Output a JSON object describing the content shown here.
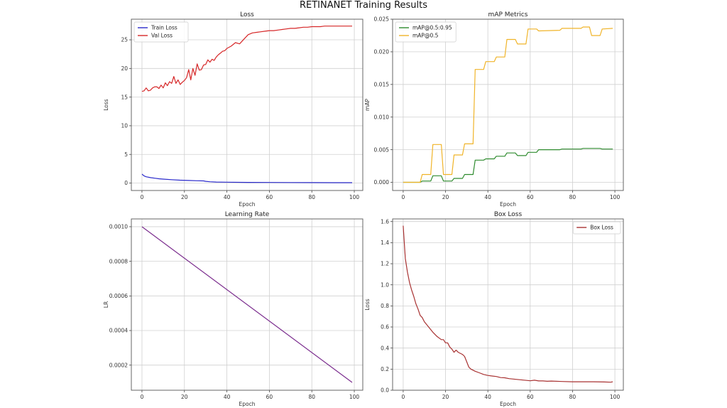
{
  "suptitle": "RETINANET Training Results",
  "chart_data": [
    {
      "type": "line",
      "title": "Loss",
      "xlabel": "Epoch",
      "ylabel": "Loss",
      "xlim": [
        -5,
        104
      ],
      "ylim": [
        -1.3,
        28.6
      ],
      "xticks": [
        0,
        20,
        40,
        60,
        80,
        100
      ],
      "yticks": [
        0,
        5,
        10,
        15,
        20,
        25
      ],
      "ytick_labels": [
        "0",
        "5",
        "10",
        "15",
        "20",
        "25"
      ],
      "grid": true,
      "legend": "top-left",
      "series": [
        {
          "name": "Train Loss",
          "color": "#2a2acb",
          "x": [
            0,
            1,
            2,
            4,
            6,
            8,
            10,
            14,
            18,
            22,
            26,
            29,
            30,
            32,
            35,
            40,
            50,
            60,
            70,
            80,
            90,
            99
          ],
          "y": [
            1.55,
            1.25,
            1.1,
            0.95,
            0.85,
            0.75,
            0.68,
            0.58,
            0.5,
            0.45,
            0.4,
            0.38,
            0.3,
            0.22,
            0.18,
            0.15,
            0.12,
            0.1,
            0.09,
            0.08,
            0.07,
            0.06
          ]
        },
        {
          "name": "Val Loss",
          "color": "#d62728",
          "x": [
            0,
            1,
            2,
            3,
            4,
            5,
            6,
            7,
            8,
            9,
            10,
            11,
            12,
            13,
            14,
            15,
            16,
            17,
            18,
            19,
            20,
            21,
            22,
            23,
            24,
            25,
            26,
            27,
            28,
            29,
            30,
            31,
            32,
            33,
            34,
            35,
            36,
            37,
            38,
            39,
            40,
            42,
            44,
            46,
            48,
            50,
            52,
            54,
            56,
            58,
            60,
            62,
            64,
            66,
            68,
            70,
            72,
            74,
            76,
            78,
            80,
            82,
            84,
            86,
            88,
            90,
            92,
            94,
            96,
            98,
            99
          ],
          "y": [
            16.0,
            16.1,
            16.6,
            16.1,
            16.2,
            16.6,
            16.8,
            16.8,
            16.5,
            17.1,
            16.6,
            17.5,
            17.0,
            17.7,
            17.4,
            18.6,
            17.4,
            18.0,
            17.2,
            17.6,
            17.9,
            18.4,
            19.8,
            18.0,
            20.0,
            18.8,
            20.8,
            19.7,
            19.8,
            20.6,
            20.7,
            21.5,
            21.1,
            21.6,
            21.4,
            22.0,
            22.4,
            22.7,
            23.0,
            23.1,
            23.5,
            23.9,
            24.5,
            24.3,
            25.1,
            25.9,
            26.2,
            26.3,
            26.4,
            26.5,
            26.6,
            26.6,
            26.7,
            26.8,
            26.9,
            27.0,
            27.0,
            27.1,
            27.2,
            27.2,
            27.3,
            27.3,
            27.3,
            27.4,
            27.4,
            27.4,
            27.4,
            27.4,
            27.4,
            27.4,
            27.4
          ]
        }
      ]
    },
    {
      "type": "line",
      "title": "mAP Metrics",
      "xlabel": "Epoch",
      "ylabel": "mAP",
      "xlim": [
        -5,
        104
      ],
      "ylim": [
        -0.00125,
        0.025
      ],
      "xticks": [
        0,
        20,
        40,
        60,
        80,
        100
      ],
      "yticks": [
        0.0,
        0.005,
        0.01,
        0.015,
        0.02,
        0.025
      ],
      "ytick_labels": [
        "0.000",
        "0.005",
        "0.010",
        "0.015",
        "0.020",
        "0.025"
      ],
      "grid": true,
      "legend": "top-left",
      "series": [
        {
          "name": "mAP@0.5:0.95",
          "color": "#2e8b2e",
          "x": [
            0,
            8,
            9,
            13,
            14,
            18,
            19,
            23,
            24,
            28,
            29,
            33,
            34,
            38,
            39,
            43,
            44,
            48,
            49,
            53,
            54,
            58,
            59,
            63,
            64,
            74,
            75,
            84,
            85,
            93,
            94,
            99
          ],
          "y": [
            0,
            0,
            0.0002,
            0.0002,
            0.001,
            0.001,
            0.0002,
            0.0002,
            0.0006,
            0.0006,
            0.0012,
            0.0012,
            0.0034,
            0.0034,
            0.0036,
            0.0036,
            0.004,
            0.004,
            0.0045,
            0.0045,
            0.0041,
            0.0041,
            0.0046,
            0.0046,
            0.005,
            0.005,
            0.0051,
            0.0051,
            0.0052,
            0.0052,
            0.0051,
            0.0051
          ]
        },
        {
          "name": "mAP@0.5",
          "color": "#f0b429",
          "x": [
            0,
            8,
            9,
            13,
            14,
            18,
            19,
            23,
            24,
            28,
            29,
            33,
            34,
            38,
            39,
            43,
            44,
            48,
            49,
            53,
            54,
            58,
            59,
            63,
            64,
            74,
            75,
            84,
            85,
            88,
            89,
            93,
            94,
            99
          ],
          "y": [
            0,
            0,
            0.0012,
            0.0012,
            0.0058,
            0.0058,
            0.0012,
            0.0012,
            0.0042,
            0.0042,
            0.0059,
            0.0059,
            0.0173,
            0.0173,
            0.0185,
            0.0185,
            0.0192,
            0.0192,
            0.0219,
            0.0219,
            0.0212,
            0.0212,
            0.0235,
            0.0235,
            0.0232,
            0.0233,
            0.0236,
            0.0236,
            0.0238,
            0.0238,
            0.0225,
            0.0225,
            0.0235,
            0.0236
          ]
        }
      ]
    },
    {
      "type": "line",
      "title": "Learning Rate",
      "xlabel": "Epoch",
      "ylabel": "LR",
      "xlim": [
        -5,
        104
      ],
      "ylim": [
        5.5e-05,
        0.001045
      ],
      "xticks": [
        0,
        20,
        40,
        60,
        80,
        100
      ],
      "yticks": [
        0.0002,
        0.0004,
        0.0006,
        0.0008,
        0.001
      ],
      "ytick_labels": [
        "0.0002",
        "0.0004",
        "0.0006",
        "0.0008",
        "0.0010"
      ],
      "grid": true,
      "legend": "none",
      "series": [
        {
          "name": "LR",
          "color": "#7b2d8e",
          "x": [
            0,
            99
          ],
          "y": [
            0.001,
            0.0001
          ]
        }
      ]
    },
    {
      "type": "line",
      "title": "Box Loss",
      "xlabel": "Epoch",
      "ylabel": "Loss",
      "xlim": [
        -5,
        104
      ],
      "ylim": [
        0.0,
        1.625
      ],
      "xticks": [
        0,
        20,
        40,
        60,
        80,
        100
      ],
      "yticks": [
        0.0,
        0.2,
        0.4,
        0.6,
        0.8,
        1.0,
        1.2,
        1.4,
        1.6
      ],
      "ytick_labels": [
        "0.0",
        "0.2",
        "0.4",
        "0.6",
        "0.8",
        "1.0",
        "1.2",
        "1.4",
        "1.6"
      ],
      "grid": true,
      "legend": "top-right",
      "series": [
        {
          "name": "Box Loss",
          "color": "#a83232",
          "x": [
            0,
            1,
            2,
            3,
            4,
            5,
            6,
            7,
            8,
            9,
            10,
            12,
            14,
            16,
            18,
            19,
            20,
            21,
            22,
            23,
            24,
            25,
            26,
            28,
            29,
            30,
            31,
            32,
            34,
            36,
            38,
            40,
            42,
            44,
            46,
            48,
            50,
            55,
            60,
            62,
            64,
            66,
            68,
            70,
            75,
            80,
            85,
            90,
            95,
            98,
            99
          ],
          "y": [
            1.56,
            1.25,
            1.12,
            1.02,
            0.95,
            0.89,
            0.82,
            0.77,
            0.71,
            0.69,
            0.65,
            0.6,
            0.55,
            0.51,
            0.48,
            0.48,
            0.45,
            0.45,
            0.41,
            0.39,
            0.36,
            0.38,
            0.36,
            0.34,
            0.32,
            0.27,
            0.22,
            0.2,
            0.18,
            0.165,
            0.15,
            0.14,
            0.135,
            0.13,
            0.12,
            0.118,
            0.11,
            0.1,
            0.09,
            0.095,
            0.088,
            0.088,
            0.085,
            0.087,
            0.083,
            0.08,
            0.08,
            0.08,
            0.078,
            0.076,
            0.08
          ]
        }
      ]
    }
  ]
}
